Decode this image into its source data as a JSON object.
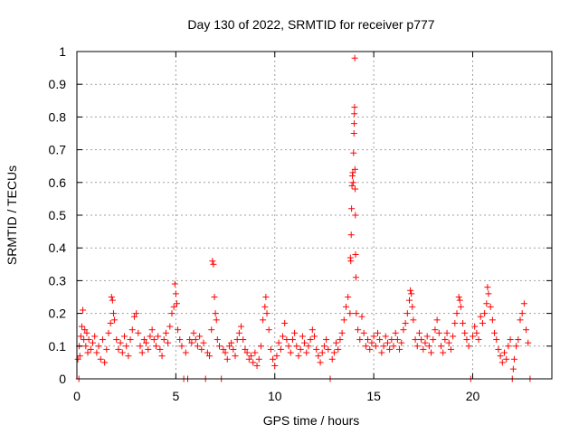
{
  "chart_data": {
    "type": "scatter",
    "title": "Day 130 of 2022, SRMTID for receiver p777",
    "xlabel": "GPS time / hours",
    "ylabel": "SRMTID / TECUs",
    "xlim": [
      0,
      24
    ],
    "ylim": [
      0,
      1
    ],
    "xticks": [
      0,
      5,
      10,
      15,
      20
    ],
    "xtick_labels": [
      "0",
      "5",
      "10",
      "15",
      "20"
    ],
    "yticks": [
      0,
      0.1,
      0.2,
      0.3,
      0.4,
      0.5,
      0.6,
      0.7,
      0.8,
      0.9,
      1
    ],
    "ytick_labels": [
      "0",
      "0.1",
      "0.2",
      "0.3",
      "0.4",
      "0.5",
      "0.6",
      "0.7",
      "0.8",
      "0.9",
      "1"
    ],
    "grid": true,
    "marker": "+",
    "color": "#ff0000",
    "series": [
      {
        "name": "SRMTID",
        "points": [
          [
            0.05,
            0.06
          ],
          [
            0.1,
            0.0
          ],
          [
            0.12,
            0.1
          ],
          [
            0.15,
            0.07
          ],
          [
            0.2,
            0.13
          ],
          [
            0.25,
            0.16
          ],
          [
            0.3,
            0.21
          ],
          [
            0.35,
            0.12
          ],
          [
            0.4,
            0.15
          ],
          [
            0.45,
            0.1
          ],
          [
            0.5,
            0.14
          ],
          [
            0.55,
            0.08
          ],
          [
            0.6,
            0.12
          ],
          [
            0.7,
            0.09
          ],
          [
            0.8,
            0.11
          ],
          [
            0.9,
            0.13
          ],
          [
            1.0,
            0.08
          ],
          [
            1.1,
            0.1
          ],
          [
            1.2,
            0.06
          ],
          [
            1.3,
            0.12
          ],
          [
            1.4,
            0.05
          ],
          [
            1.5,
            0.09
          ],
          [
            1.6,
            0.14
          ],
          [
            1.7,
            0.17
          ],
          [
            1.75,
            0.25
          ],
          [
            1.8,
            0.24
          ],
          [
            1.85,
            0.2
          ],
          [
            1.9,
            0.18
          ],
          [
            2.0,
            0.12
          ],
          [
            2.1,
            0.09
          ],
          [
            2.2,
            0.11
          ],
          [
            2.3,
            0.08
          ],
          [
            2.4,
            0.13
          ],
          [
            2.5,
            0.1
          ],
          [
            2.6,
            0.07
          ],
          [
            2.7,
            0.12
          ],
          [
            2.8,
            0.15
          ],
          [
            2.9,
            0.19
          ],
          [
            3.0,
            0.2
          ],
          [
            3.1,
            0.14
          ],
          [
            3.2,
            0.1
          ],
          [
            3.3,
            0.08
          ],
          [
            3.4,
            0.12
          ],
          [
            3.5,
            0.11
          ],
          [
            3.6,
            0.09
          ],
          [
            3.7,
            0.13
          ],
          [
            3.8,
            0.15
          ],
          [
            3.9,
            0.12
          ],
          [
            4.0,
            0.1
          ],
          [
            4.1,
            0.13
          ],
          [
            4.2,
            0.09
          ],
          [
            4.3,
            0.07
          ],
          [
            4.4,
            0.12
          ],
          [
            4.5,
            0.14
          ],
          [
            4.6,
            0.11
          ],
          [
            4.7,
            0.16
          ],
          [
            4.8,
            0.2
          ],
          [
            4.9,
            0.22
          ],
          [
            4.95,
            0.29
          ],
          [
            5.0,
            0.26
          ],
          [
            5.05,
            0.23
          ],
          [
            5.1,
            0.15
          ],
          [
            5.2,
            0.12
          ],
          [
            5.3,
            0.1
          ],
          [
            5.4,
            0.0
          ],
          [
            5.5,
            0.08
          ],
          [
            5.6,
            0.0
          ],
          [
            5.7,
            0.12
          ],
          [
            5.8,
            0.11
          ],
          [
            5.9,
            0.14
          ],
          [
            6.0,
            0.12
          ],
          [
            6.1,
            0.1
          ],
          [
            6.2,
            0.13
          ],
          [
            6.3,
            0.09
          ],
          [
            6.4,
            0.11
          ],
          [
            6.5,
            0.0
          ],
          [
            6.6,
            0.08
          ],
          [
            6.7,
            0.07
          ],
          [
            6.8,
            0.15
          ],
          [
            6.85,
            0.36
          ],
          [
            6.9,
            0.35
          ],
          [
            6.95,
            0.25
          ],
          [
            7.0,
            0.2
          ],
          [
            7.05,
            0.18
          ],
          [
            7.1,
            0.12
          ],
          [
            7.2,
            0.1
          ],
          [
            7.3,
            0.0
          ],
          [
            7.4,
            0.09
          ],
          [
            7.5,
            0.08
          ],
          [
            7.6,
            0.06
          ],
          [
            7.7,
            0.1
          ],
          [
            7.8,
            0.11
          ],
          [
            7.9,
            0.09
          ],
          [
            8.0,
            0.07
          ],
          [
            8.1,
            0.12
          ],
          [
            8.2,
            0.14
          ],
          [
            8.3,
            0.16
          ],
          [
            8.4,
            0.12
          ],
          [
            8.5,
            0.09
          ],
          [
            8.6,
            0.08
          ],
          [
            8.7,
            0.06
          ],
          [
            8.8,
            0.07
          ],
          [
            8.9,
            0.05
          ],
          [
            9.0,
            0.08
          ],
          [
            9.1,
            0.04
          ],
          [
            9.2,
            0.06
          ],
          [
            9.3,
            0.1
          ],
          [
            9.4,
            0.18
          ],
          [
            9.5,
            0.22
          ],
          [
            9.55,
            0.25
          ],
          [
            9.6,
            0.2
          ],
          [
            9.7,
            0.15
          ],
          [
            9.8,
            0.09
          ],
          [
            9.9,
            0.06
          ],
          [
            10.0,
            0.04
          ],
          [
            10.1,
            0.07
          ],
          [
            10.2,
            0.11
          ],
          [
            10.3,
            0.09
          ],
          [
            10.4,
            0.13
          ],
          [
            10.5,
            0.17
          ],
          [
            10.6,
            0.12
          ],
          [
            10.7,
            0.1
          ],
          [
            10.8,
            0.08
          ],
          [
            10.9,
            0.12
          ],
          [
            11.0,
            0.14
          ],
          [
            11.1,
            0.1
          ],
          [
            11.2,
            0.07
          ],
          [
            11.3,
            0.09
          ],
          [
            11.4,
            0.13
          ],
          [
            11.5,
            0.11
          ],
          [
            11.6,
            0.08
          ],
          [
            11.7,
            0.1
          ],
          [
            11.8,
            0.12
          ],
          [
            11.9,
            0.15
          ],
          [
            12.0,
            0.13
          ],
          [
            12.1,
            0.09
          ],
          [
            12.2,
            0.07
          ],
          [
            12.3,
            0.05
          ],
          [
            12.4,
            0.08
          ],
          [
            12.5,
            0.1
          ],
          [
            12.6,
            0.12
          ],
          [
            12.7,
            0.09
          ],
          [
            12.8,
            0.0
          ],
          [
            12.9,
            0.06
          ],
          [
            13.0,
            0.08
          ],
          [
            13.1,
            0.11
          ],
          [
            13.2,
            0.09
          ],
          [
            13.3,
            0.12
          ],
          [
            13.4,
            0.14
          ],
          [
            13.5,
            0.18
          ],
          [
            13.6,
            0.22
          ],
          [
            13.7,
            0.25
          ],
          [
            13.8,
            0.2
          ],
          [
            13.82,
            0.37
          ],
          [
            13.84,
            0.36
          ],
          [
            13.86,
            0.44
          ],
          [
            13.88,
            0.52
          ],
          [
            13.9,
            0.59
          ],
          [
            13.92,
            0.62
          ],
          [
            13.94,
            0.63
          ],
          [
            13.96,
            0.6
          ],
          [
            13.98,
            0.69
          ],
          [
            14.0,
            0.75
          ],
          [
            14.01,
            0.78
          ],
          [
            14.02,
            0.81
          ],
          [
            14.03,
            0.83
          ],
          [
            14.04,
            0.98
          ],
          [
            14.05,
            0.64
          ],
          [
            14.06,
            0.58
          ],
          [
            14.07,
            0.5
          ],
          [
            14.08,
            0.38
          ],
          [
            14.1,
            0.31
          ],
          [
            14.12,
            0.2
          ],
          [
            14.2,
            0.15
          ],
          [
            14.3,
            0.12
          ],
          [
            14.4,
            0.19
          ],
          [
            14.5,
            0.14
          ],
          [
            14.6,
            0.1
          ],
          [
            14.7,
            0.12
          ],
          [
            14.8,
            0.09
          ],
          [
            14.9,
            0.11
          ],
          [
            15.0,
            0.13
          ],
          [
            15.1,
            0.1
          ],
          [
            15.2,
            0.14
          ],
          [
            15.3,
            0.12
          ],
          [
            15.4,
            0.08
          ],
          [
            15.5,
            0.1
          ],
          [
            15.6,
            0.13
          ],
          [
            15.7,
            0.11
          ],
          [
            15.8,
            0.09
          ],
          [
            15.9,
            0.12
          ],
          [
            16.0,
            0.1
          ],
          [
            16.1,
            0.14
          ],
          [
            16.2,
            0.12
          ],
          [
            16.3,
            0.09
          ],
          [
            16.4,
            0.11
          ],
          [
            16.5,
            0.15
          ],
          [
            16.6,
            0.17
          ],
          [
            16.7,
            0.2
          ],
          [
            16.8,
            0.24
          ],
          [
            16.85,
            0.27
          ],
          [
            16.9,
            0.26
          ],
          [
            16.95,
            0.22
          ],
          [
            17.0,
            0.18
          ],
          [
            17.1,
            0.12
          ],
          [
            17.2,
            0.1
          ],
          [
            17.3,
            0.14
          ],
          [
            17.4,
            0.12
          ],
          [
            17.5,
            0.09
          ],
          [
            17.6,
            0.11
          ],
          [
            17.7,
            0.13
          ],
          [
            17.8,
            0.1
          ],
          [
            17.9,
            0.08
          ],
          [
            18.0,
            0.12
          ],
          [
            18.1,
            0.15
          ],
          [
            18.2,
            0.18
          ],
          [
            18.3,
            0.14
          ],
          [
            18.4,
            0.1
          ],
          [
            18.5,
            0.08
          ],
          [
            18.6,
            0.12
          ],
          [
            18.7,
            0.14
          ],
          [
            18.8,
            0.11
          ],
          [
            18.9,
            0.09
          ],
          [
            19.0,
            0.13
          ],
          [
            19.1,
            0.17
          ],
          [
            19.2,
            0.2
          ],
          [
            19.3,
            0.25
          ],
          [
            19.35,
            0.24
          ],
          [
            19.4,
            0.22
          ],
          [
            19.5,
            0.17
          ],
          [
            19.6,
            0.14
          ],
          [
            19.7,
            0.12
          ],
          [
            19.8,
            0.1
          ],
          [
            19.9,
            0.0
          ],
          [
            20.0,
            0.13
          ],
          [
            20.1,
            0.16
          ],
          [
            20.2,
            0.14
          ],
          [
            20.3,
            0.12
          ],
          [
            20.4,
            0.19
          ],
          [
            20.5,
            0.17
          ],
          [
            20.6,
            0.2
          ],
          [
            20.7,
            0.23
          ],
          [
            20.75,
            0.28
          ],
          [
            20.8,
            0.26
          ],
          [
            20.9,
            0.22
          ],
          [
            21.0,
            0.18
          ],
          [
            21.1,
            0.14
          ],
          [
            21.2,
            0.12
          ],
          [
            21.3,
            0.09
          ],
          [
            21.4,
            0.07
          ],
          [
            21.5,
            0.05
          ],
          [
            21.6,
            0.08
          ],
          [
            21.7,
            0.06
          ],
          [
            21.8,
            0.1
          ],
          [
            21.9,
            0.12
          ],
          [
            22.0,
            0.0
          ],
          [
            22.05,
            0.03
          ],
          [
            22.1,
            0.06
          ],
          [
            22.2,
            0.1
          ],
          [
            22.3,
            0.12
          ],
          [
            22.4,
            0.18
          ],
          [
            22.5,
            0.2
          ],
          [
            22.6,
            0.23
          ],
          [
            22.7,
            0.15
          ],
          [
            22.8,
            0.11
          ],
          [
            22.9,
            0.0
          ]
        ]
      }
    ]
  }
}
